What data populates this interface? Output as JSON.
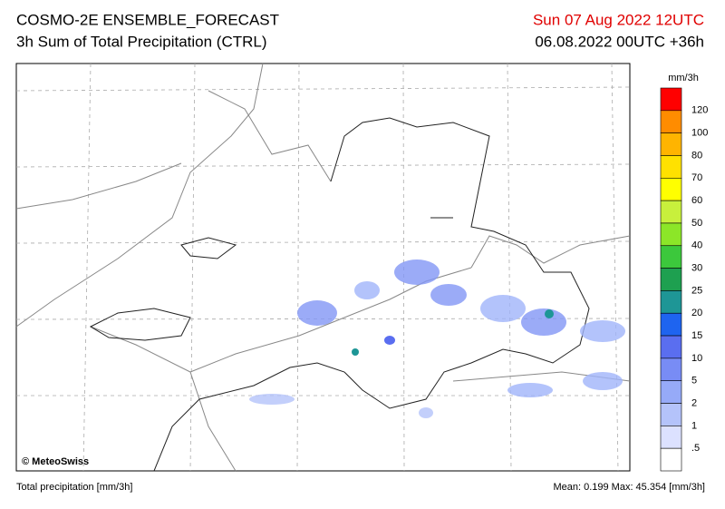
{
  "header": {
    "title": "COSMO-2E ENSEMBLE_FORECAST",
    "subtitle": "3h Sum of Total Precipitation (CTRL)",
    "valid_time": "Sun 07 Aug 2022 12UTC",
    "run_time": "06.08.2022 00UTC +36h"
  },
  "map": {
    "credit": "© MeteoSwiss"
  },
  "legend": {
    "unit": "mm/3h",
    "colors": [
      "#ff0000",
      "#ff4a00",
      "#ff8c00",
      "#ffb400",
      "#ffe100",
      "#ffff00",
      "#c8f03c",
      "#8ce628",
      "#3cc83c",
      "#1ea050",
      "#1e9696",
      "#1e64f0",
      "#5a6ef0",
      "#788cf5",
      "#96aaf8",
      "#b4c3fa",
      "#dce1ff",
      "#ffffff"
    ],
    "labels": [
      "120",
      "100",
      "80",
      "70",
      "60",
      "50",
      "40",
      "30",
      "25",
      "20",
      "15",
      "10",
      "5",
      "2",
      "1",
      ".5"
    ]
  },
  "footer": {
    "left": "Total precipitation [mm/3h]",
    "right": "Mean:  0.199 Max: 45.354 [mm/3h]"
  }
}
